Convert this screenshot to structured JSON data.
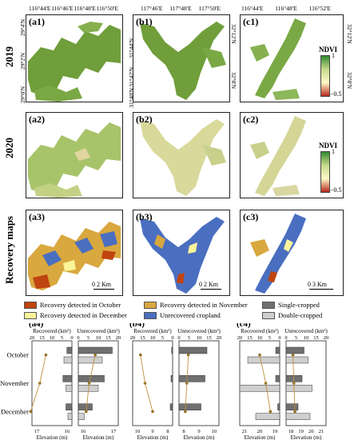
{
  "row_labels": [
    "2019",
    "2020",
    "Recovery maps"
  ],
  "coords": {
    "a_top": [
      "116°44'E",
      "116°46'E",
      "116°48'E",
      "116°50'E"
    ],
    "a_left": [
      "29°4'N",
      "29°2'N",
      "29°0'N"
    ],
    "b_top": [
      "117°46'E",
      "117°48'E",
      "117°50'E"
    ],
    "b_left": [
      "31°44'N",
      "31°42'N",
      "31°40'N"
    ],
    "c_top": [
      "116°44'E",
      "116°48'E",
      "116°52'E"
    ],
    "c_right": [
      "32°12'N",
      "32°8'N"
    ]
  },
  "panels": {
    "a1": "(a1)",
    "b1": "(b1)",
    "c1": "(c1)",
    "a2": "(a2)",
    "b2": "(b2)",
    "c2": "(c2)",
    "a3": "(a3)",
    "b3": "(b3)",
    "c3": "(c3)",
    "a4": "(a4)",
    "b4": "(b4)",
    "c4": "(c4)"
  },
  "ndvi_legend": {
    "title": "NDVI",
    "max": "1",
    "min": "−0.5"
  },
  "scalebars": {
    "a3": "0  2 Km",
    "b3": "0    2 Km",
    "c3": "0    3 Km"
  },
  "legend": [
    {
      "label": "Recovery detected in October",
      "color": "#c0440f"
    },
    {
      "label": "Recovery detected in November",
      "color": "#d9a83e"
    },
    {
      "label": "Single-cropped",
      "color": "#6f6f6f"
    },
    {
      "label": "Recovery detected in December",
      "color": "#fbf49a"
    },
    {
      "label": "Unrecovered cropland",
      "color": "#4a6fc0"
    },
    {
      "label": "Double-cropped",
      "color": "#cfcfcf"
    }
  ],
  "chart_data": [
    {
      "panel": "(a4)",
      "type": "bar",
      "categories": [
        "October",
        "November",
        "December"
      ],
      "recovered_axis": {
        "label": "Recovered (km²)",
        "ticks": [
          20,
          15,
          10,
          5,
          0
        ]
      },
      "unrecovered_axis": {
        "label": "Unrecovered (km²)",
        "ticks": [
          0,
          5,
          10,
          15,
          20
        ]
      },
      "recovered": {
        "single": [
          2.5,
          4.5,
          3
        ],
        "double": [
          4,
          3,
          2
        ]
      },
      "unrecovered": {
        "single": [
          17,
          13,
          7
        ],
        "double": [
          12,
          10,
          3
        ]
      },
      "elevation": {
        "xlabel": "Elevation (m)",
        "ticks": [
          17,
          16
        ],
        "values": [
          16.7,
          16.9,
          17.2
        ]
      },
      "elevation_unrecovered": {
        "xlabel": "Elevation (m)",
        "ticks": [
          16,
          17
        ],
        "values": [
          16.4,
          16.2,
          16.1
        ]
      }
    },
    {
      "panel": "(b4)",
      "type": "bar",
      "categories": [
        "October",
        "November",
        "December"
      ],
      "recovered_axis": {
        "label": "Recovered (km²)",
        "ticks": [
          20,
          15,
          10,
          5,
          0
        ]
      },
      "unrecovered_axis": {
        "label": "Unrecovered (km²)",
        "ticks": [
          0,
          5,
          10,
          15,
          20
        ]
      },
      "recovered": {
        "single": [
          0.5,
          0.8,
          1.2
        ],
        "double": [
          0,
          0,
          0
        ]
      },
      "unrecovered": {
        "single": [
          14,
          13,
          11
        ],
        "double": [
          0,
          0,
          0
        ]
      },
      "elevation": {
        "xlabel": "Elevation (m)",
        "ticks": [
          10,
          9,
          8
        ],
        "values": [
          9.8,
          9.5,
          9.0
        ]
      },
      "elevation_unrecovered": {
        "xlabel": "Elevation (m)",
        "ticks": [
          8,
          9,
          10
        ],
        "values": [
          8.3,
          8.2,
          8.1
        ]
      }
    },
    {
      "panel": "(c4)",
      "type": "bar",
      "categories": [
        "October",
        "November",
        "December"
      ],
      "recovered_axis": {
        "label": "Recovered (km²)",
        "ticks": [
          20,
          15,
          10,
          5,
          0
        ]
      },
      "unrecovered_axis": {
        "label": "Unrecovered (km²)",
        "ticks": [
          0,
          5,
          10,
          15,
          20
        ]
      },
      "recovered": {
        "single": [
          2,
          2,
          1
        ],
        "double": [
          16,
          20,
          12
        ]
      },
      "unrecovered": {
        "single": [
          9,
          8,
          6
        ],
        "double": [
          11,
          13,
          12
        ]
      },
      "elevation": {
        "xlabel": "Elevation (m)",
        "ticks": [
          21,
          20,
          19
        ],
        "values": [
          20.0,
          19.6,
          19.3
        ]
      },
      "elevation_unrecovered": {
        "xlabel": "Elevation (m)",
        "ticks": [
          18,
          19,
          20,
          21
        ],
        "values": [
          18.2,
          18.3,
          18.4
        ]
      }
    }
  ]
}
